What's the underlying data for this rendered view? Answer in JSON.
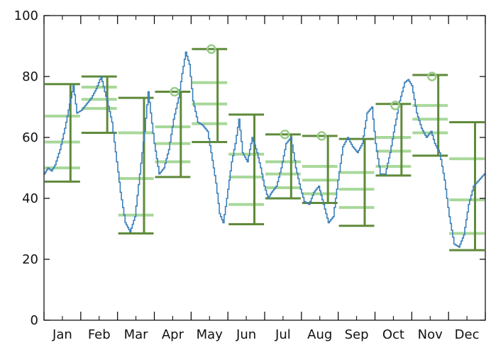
{
  "chart_data": {
    "type": "line",
    "title": "",
    "xlabel": "",
    "ylabel": "",
    "ylim": [
      0,
      100
    ],
    "yticks": [
      0,
      20,
      40,
      60,
      80,
      100
    ],
    "months": [
      "Jan",
      "Feb",
      "Mar",
      "Apr",
      "May",
      "Jun",
      "Jul",
      "Aug",
      "Sep",
      "Oct",
      "Nov",
      "Dec"
    ],
    "grid": false,
    "colors": {
      "trace": "#3b7fb8",
      "range_bar": "#5f8a3a",
      "quartile": "#a8d89a",
      "peak_marker": "#98cc88",
      "axis": "#000000"
    },
    "daily_series_keypoints": [
      [
        0,
        48
      ],
      [
        3,
        50
      ],
      [
        6,
        49
      ],
      [
        9,
        51
      ],
      [
        13,
        56
      ],
      [
        17,
        63
      ],
      [
        21,
        71
      ],
      [
        24,
        77
      ],
      [
        27,
        68
      ],
      [
        31,
        69
      ],
      [
        35,
        71
      ],
      [
        39,
        73
      ],
      [
        43,
        76
      ],
      [
        47,
        80
      ],
      [
        50,
        75
      ],
      [
        52,
        72
      ],
      [
        56,
        65
      ],
      [
        60,
        52
      ],
      [
        63,
        42
      ],
      [
        67,
        32
      ],
      [
        71,
        29
      ],
      [
        75,
        34
      ],
      [
        79,
        48
      ],
      [
        83,
        62
      ],
      [
        86,
        75
      ],
      [
        88,
        68
      ],
      [
        91,
        58
      ],
      [
        95,
        48
      ],
      [
        99,
        50
      ],
      [
        103,
        56
      ],
      [
        107,
        66
      ],
      [
        111,
        73
      ],
      [
        114,
        81
      ],
      [
        117,
        88
      ],
      [
        120,
        84
      ],
      [
        123,
        72
      ],
      [
        127,
        65
      ],
      [
        131,
        64
      ],
      [
        135,
        62
      ],
      [
        138,
        55
      ],
      [
        142,
        45
      ],
      [
        145,
        35
      ],
      [
        148,
        32
      ],
      [
        151,
        40
      ],
      [
        155,
        52
      ],
      [
        158,
        58
      ],
      [
        161,
        66
      ],
      [
        164,
        55
      ],
      [
        168,
        52
      ],
      [
        172,
        60
      ],
      [
        176,
        55
      ],
      [
        179,
        50
      ],
      [
        182,
        44
      ],
      [
        185,
        40
      ],
      [
        188,
        42
      ],
      [
        192,
        44
      ],
      [
        196,
        50
      ],
      [
        200,
        58
      ],
      [
        204,
        60
      ],
      [
        208,
        50
      ],
      [
        212,
        43
      ],
      [
        215,
        39
      ],
      [
        219,
        38
      ],
      [
        223,
        42
      ],
      [
        227,
        44
      ],
      [
        231,
        38
      ],
      [
        235,
        32
      ],
      [
        239,
        34
      ],
      [
        243,
        46
      ],
      [
        247,
        57
      ],
      [
        251,
        60
      ],
      [
        255,
        57
      ],
      [
        259,
        55
      ],
      [
        263,
        58
      ],
      [
        267,
        68
      ],
      [
        271,
        70
      ],
      [
        274,
        58
      ],
      [
        278,
        48
      ],
      [
        282,
        48
      ],
      [
        286,
        55
      ],
      [
        290,
        64
      ],
      [
        294,
        72
      ],
      [
        298,
        78
      ],
      [
        301,
        79
      ],
      [
        304,
        77
      ],
      [
        308,
        68
      ],
      [
        312,
        63
      ],
      [
        316,
        60
      ],
      [
        320,
        62
      ],
      [
        323,
        58
      ],
      [
        327,
        55
      ],
      [
        331,
        46
      ],
      [
        335,
        34
      ],
      [
        339,
        25
      ],
      [
        343,
        24
      ],
      [
        347,
        28
      ],
      [
        351,
        38
      ],
      [
        355,
        44
      ],
      [
        364,
        48
      ]
    ],
    "monthly_summary": [
      {
        "month": "Jan",
        "max": 77.5,
        "min": 45.5,
        "q1": 50,
        "median": 58.5,
        "q3": 67,
        "peak": null
      },
      {
        "month": "Feb",
        "max": 80,
        "min": 61.5,
        "q1": 69.5,
        "median": 72.5,
        "q3": 76.5,
        "peak": null
      },
      {
        "month": "Mar",
        "max": 73,
        "min": 28.5,
        "q1": 34.5,
        "median": 46.5,
        "q3": 61.5,
        "peak": null
      },
      {
        "month": "Apr",
        "max": 75,
        "min": 47,
        "q1": 52,
        "median": 58,
        "q3": 63.5,
        "peak": 75
      },
      {
        "month": "May",
        "max": 89,
        "min": 58.5,
        "q1": 64.5,
        "median": 71,
        "q3": 78,
        "peak": 89
      },
      {
        "month": "Jun",
        "max": 67.5,
        "min": 31.5,
        "q1": 38,
        "median": 47,
        "q3": 54.5,
        "peak": null
      },
      {
        "month": "Jul",
        "max": 61,
        "min": 40,
        "q1": 43.5,
        "median": 48,
        "q3": 52,
        "peak": 61
      },
      {
        "month": "Aug",
        "max": 60.5,
        "min": 38.5,
        "q1": 41.5,
        "median": 46,
        "q3": 50.5,
        "peak": 60.5
      },
      {
        "month": "Sep",
        "max": 59.5,
        "min": 31,
        "q1": 37,
        "median": 43,
        "q3": 48.5,
        "peak": null
      },
      {
        "month": "Oct",
        "max": 71,
        "min": 47.5,
        "q1": 50.5,
        "median": 55.5,
        "q3": 60,
        "peak": 70.5
      },
      {
        "month": "Nov",
        "max": 80.5,
        "min": 54,
        "q1": 61.5,
        "median": 66,
        "q3": 70.5,
        "peak": 80
      },
      {
        "month": "Dec",
        "max": 65,
        "min": 23,
        "q1": 28.5,
        "median": 39.5,
        "q3": 53,
        "peak": null
      }
    ]
  }
}
